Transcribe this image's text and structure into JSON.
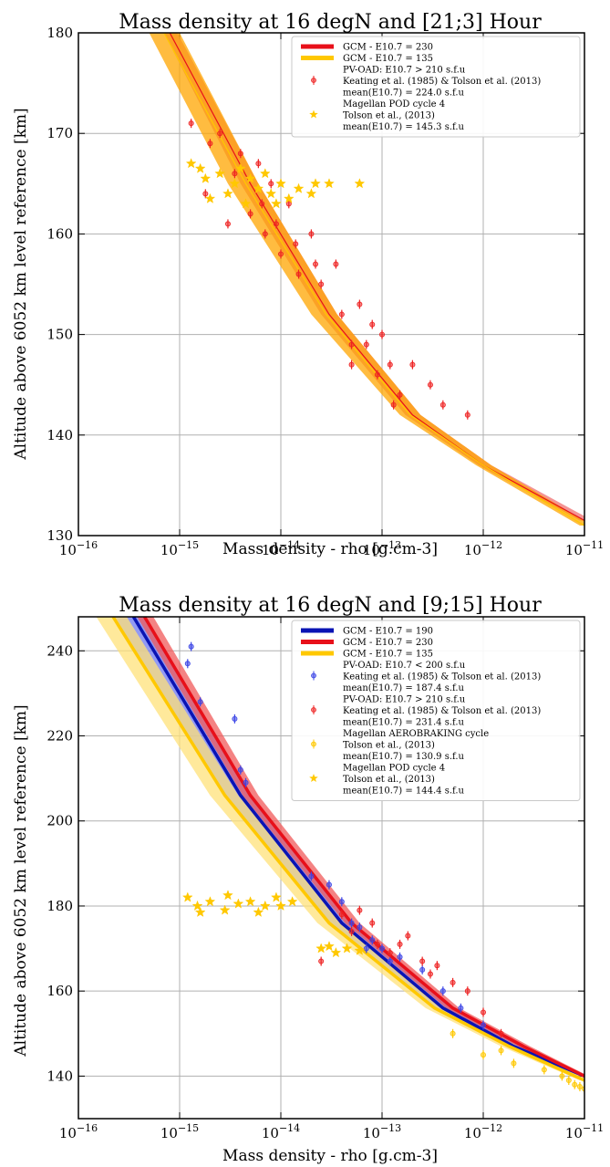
{
  "chart_data": [
    {
      "type": "line",
      "title": "Mass density at 16 degN and [21;3] Hour",
      "xlabel": "Mass density - rho [g.cm-3]",
      "ylabel": "Altitude above 6052 km level reference [km]",
      "xscale": "log",
      "xlim": [
        1e-16,
        1e-11
      ],
      "ylim": [
        130,
        180
      ],
      "grid": true,
      "legend_position": "top-right",
      "xticks": [
        {
          "value": 1e-16,
          "label": "10^-16",
          "base": "10",
          "exp": "−16"
        },
        {
          "value": 1e-15,
          "label": "10^-15",
          "base": "10",
          "exp": "−15"
        },
        {
          "value": 1e-14,
          "label": "10^-14",
          "base": "10",
          "exp": "−14"
        },
        {
          "value": 1e-13,
          "label": "10^-13",
          "base": "10",
          "exp": "−13"
        },
        {
          "value": 1e-12,
          "label": "10^-12",
          "base": "10",
          "exp": "−12"
        },
        {
          "value": 1e-11,
          "label": "10^-11",
          "base": "10",
          "exp": "−11"
        }
      ],
      "yticks": [
        130,
        140,
        150,
        160,
        170,
        180
      ],
      "series": [
        {
          "name": "GCM - E10.7 = 230",
          "kind": "band",
          "color": "#e8101a",
          "band_color": "#f07070",
          "x": [
            8e-16,
            5e-15,
            3e-14,
            2e-13,
            1e-12,
            1e-11
          ],
          "y": [
            180,
            165,
            152,
            142,
            137,
            131.5
          ],
          "band_low": [
            7e-16,
            4e-15,
            2.5e-14,
            1.7e-13,
            9e-13,
            9e-12
          ],
          "band_high": [
            9.5e-16,
            6e-15,
            3.6e-14,
            2.4e-13,
            1.2e-12,
            1.2e-11
          ]
        },
        {
          "name": "GCM - E10.7 = 135",
          "kind": "band",
          "color": "#ffc800",
          "band_color": "#ffa500",
          "x": [
            7e-16,
            4.5e-15,
            2.8e-14,
            1.9e-13,
            1e-12,
            1e-11
          ],
          "y": [
            180,
            165,
            152,
            142,
            137,
            131
          ],
          "band_low": [
            5e-16,
            3e-15,
            2e-14,
            1.5e-13,
            8.5e-13,
            9e-12
          ],
          "band_high": [
            1e-15,
            6e-15,
            3.6e-14,
            2.4e-13,
            1.2e-12,
            1.2e-11
          ]
        },
        {
          "name": "PV-OAD: E10.7 > 210 s.f.u",
          "sub": [
            "Keating et al. (1985) & Tolson et al. (2013)",
            "mean(E10.7) = 224.0 s.f.u"
          ],
          "kind": "points",
          "color": "#ee2222",
          "x": [
            1.3e-15,
            2.5e-15,
            4e-15,
            6e-15,
            8e-15,
            1.2e-14,
            2e-14,
            3.5e-14,
            6e-14,
            1e-13,
            2e-13,
            4e-13,
            7e-13,
            2e-15,
            3.5e-15,
            5e-15,
            7e-15,
            1e-14,
            1.5e-14,
            2.5e-14,
            4e-14,
            7e-14,
            1.2e-13,
            1.5e-13,
            3e-13,
            1.8e-15,
            3e-15,
            6.5e-15,
            9e-15,
            1.4e-14,
            2.2e-14,
            5e-14,
            9e-14,
            1.3e-13,
            5e-14,
            8e-14
          ],
          "y": [
            171,
            170,
            168,
            167,
            165,
            163,
            160,
            157,
            153,
            150,
            147,
            143,
            142,
            169,
            166,
            162,
            160,
            158,
            156,
            155,
            152,
            149,
            147,
            144,
            145,
            164,
            161,
            163,
            161,
            159,
            157,
            149,
            146,
            143,
            147,
            151
          ]
        },
        {
          "name": "Magellan POD cycle 4",
          "sub": [
            "Tolson et al., (2013)",
            "mean(E10.7) = 145.3 s.f.u"
          ],
          "kind": "stars",
          "color": "#ffc800",
          "x": [
            1.3e-15,
            1.8e-15,
            2.5e-15,
            3.5e-15,
            5e-15,
            7e-15,
            1e-14,
            1.5e-14,
            2.2e-14,
            3e-14,
            6e-14,
            2e-15,
            3e-15,
            4.5e-15,
            6e-15,
            8e-15,
            1.2e-14,
            2e-14,
            1.6e-15,
            4e-15,
            9e-15
          ],
          "y": [
            167,
            165.5,
            166,
            165,
            165.5,
            166,
            165,
            164.5,
            165,
            165,
            165,
            163.5,
            164,
            163,
            164.5,
            164,
            163.5,
            164,
            166.5,
            166.5,
            163
          ]
        }
      ]
    },
    {
      "type": "line",
      "title": "Mass density at 16 degN and [9;15] Hour",
      "xlabel": "Mass density - rho [g.cm-3]",
      "ylabel": "Altitude above 6052 km level reference [km]",
      "xscale": "log",
      "xlim": [
        1e-16,
        1e-11
      ],
      "ylim": [
        130,
        248
      ],
      "grid": true,
      "legend_position": "top-right",
      "xticks": [
        {
          "value": 1e-16,
          "label": "10^-16",
          "base": "10",
          "exp": "−16"
        },
        {
          "value": 1e-15,
          "label": "10^-15",
          "base": "10",
          "exp": "−15"
        },
        {
          "value": 1e-14,
          "label": "10^-14",
          "base": "10",
          "exp": "−14"
        },
        {
          "value": 1e-13,
          "label": "10^-13",
          "base": "10",
          "exp": "−13"
        },
        {
          "value": 1e-12,
          "label": "10^-12",
          "base": "10",
          "exp": "−12"
        },
        {
          "value": 1e-11,
          "label": "10^-11",
          "base": "10",
          "exp": "−11"
        }
      ],
      "yticks": [
        140,
        160,
        180,
        200,
        220,
        240
      ],
      "series": [
        {
          "name": "GCM - E10.7 = 190",
          "kind": "band",
          "color": "#0a14b4",
          "band_color": "#6e78f0",
          "x": [
            3.5e-16,
            4e-15,
            4e-14,
            4e-13,
            2e-12,
            1e-11
          ],
          "y": [
            248,
            206,
            176,
            156,
            147,
            140
          ],
          "band_low": [
            2.3e-16,
            2.8e-15,
            3e-14,
            3.2e-13,
            1.7e-12,
            9e-12
          ],
          "band_high": [
            4.5e-16,
            5e-15,
            5e-14,
            4.8e-13,
            2.4e-12,
            1.1e-11
          ]
        },
        {
          "name": "GCM - E10.7 = 230",
          "kind": "band",
          "color": "#e8101a",
          "band_color": "#f05a5a",
          "x": [
            4.5e-16,
            5e-15,
            5e-14,
            5e-13,
            2.5e-12,
            1e-11
          ],
          "y": [
            248,
            206,
            176,
            156,
            147,
            140
          ],
          "band_low": [
            3.8e-16,
            4.2e-15,
            4.3e-14,
            4.3e-13,
            2.2e-12,
            9e-12
          ],
          "band_high": [
            5.5e-16,
            6e-15,
            6e-14,
            5.8e-13,
            2.9e-12,
            1.1e-11
          ]
        },
        {
          "name": "GCM - E10.7 = 135",
          "kind": "band",
          "color": "#ffc800",
          "band_color": "#ffe17a",
          "x": [
            2.2e-16,
            2.8e-15,
            3e-14,
            3.3e-13,
            1.8e-12,
            1e-11
          ],
          "y": [
            248,
            206,
            176,
            156,
            147,
            139
          ],
          "band_low": [
            1.5e-16,
            2e-15,
            2.3e-14,
            2.7e-13,
            1.5e-12,
            9e-12
          ],
          "band_high": [
            3e-16,
            3.8e-15,
            4e-14,
            4e-13,
            2.2e-12,
            1.1e-11
          ]
        },
        {
          "name": "PV-OAD: E10.7 < 200 s.f.u",
          "sub": [
            "Keating et al. (1985) & Tolson et al. (2013)",
            "mean(E10.7) = 187.4 s.f.u"
          ],
          "kind": "points",
          "color": "#3c46e6",
          "x": [
            1.3e-15,
            1.2e-15,
            1.6e-15,
            3.5e-15,
            4e-15,
            4.5e-15,
            2e-14,
            3e-14,
            4e-14,
            6e-14,
            8e-14,
            1e-13,
            1.5e-13,
            2.5e-13,
            4e-13,
            6e-13,
            1e-12,
            5e-14,
            7e-14,
            1.2e-13
          ],
          "y": [
            241,
            237,
            228,
            224,
            212,
            209,
            187,
            185,
            181,
            175,
            172,
            170,
            168,
            165,
            160,
            156,
            152,
            176,
            170,
            167
          ]
        },
        {
          "name": "PV-OAD: E10.7 > 210 s.f.u",
          "sub": [
            "Keating et al. (1985) & Tolson et al. (2013)",
            "mean(E10.7) = 231.4 s.f.u"
          ],
          "kind": "points",
          "color": "#ee2222",
          "x": [
            2.5e-14,
            4e-14,
            5e-14,
            6e-14,
            9e-14,
            1.2e-13,
            1.8e-13,
            2.5e-13,
            3.5e-13,
            5e-13,
            7e-13,
            1e-12,
            1.5e-12,
            8e-14,
            1.5e-13,
            3e-13
          ],
          "y": [
            167,
            178,
            174,
            179,
            171,
            169,
            173,
            167,
            166,
            162,
            160,
            155,
            150,
            176,
            171,
            164
          ]
        },
        {
          "name": "Magellan AEROBRAKING cycle",
          "sub": [
            "Tolson et al., (2013)",
            "mean(E10.7) = 130.9 s.f.u"
          ],
          "kind": "points",
          "color": "#ffc800",
          "x": [
            1e-12,
            2e-12,
            4e-12,
            7e-12,
            9e-12,
            1e-11,
            8e-12,
            6e-12,
            1.5e-12,
            5e-13
          ],
          "y": [
            145,
            143,
            141.5,
            139,
            137.5,
            137,
            138,
            140,
            146,
            150
          ]
        },
        {
          "name": "Magellan POD cycle 4",
          "sub": [
            "Tolson et al., (2013)",
            "mean(E10.7) = 144.4 s.f.u"
          ],
          "kind": "stars",
          "color": "#ffc800",
          "x": [
            1.2e-15,
            1.5e-15,
            2e-15,
            2.8e-15,
            3.8e-15,
            5e-15,
            7e-15,
            1e-14,
            1.3e-14,
            1.6e-15,
            3e-15,
            6e-15,
            9e-15,
            2.5e-14,
            3.5e-14,
            4.5e-14,
            6e-14,
            3e-14
          ],
          "y": [
            182,
            180,
            181,
            179,
            180.5,
            181,
            180,
            180,
            181,
            178.5,
            182.5,
            178.5,
            182,
            170,
            169,
            170,
            169.5,
            170.5
          ]
        }
      ]
    }
  ]
}
